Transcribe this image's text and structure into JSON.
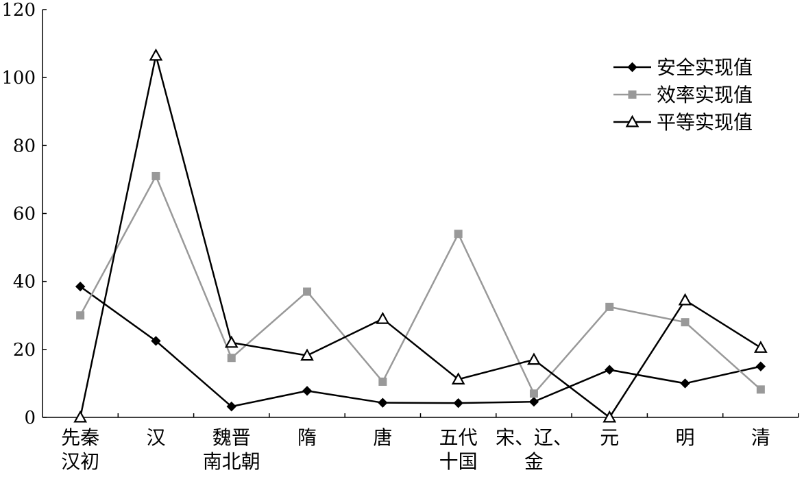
{
  "chart_data": {
    "type": "line",
    "categories": [
      [
        "先秦",
        "汉初"
      ],
      [
        "汉"
      ],
      [
        "魏晋",
        "南北朝"
      ],
      [
        "隋"
      ],
      [
        "唐"
      ],
      [
        "五代",
        "十国"
      ],
      [
        "宋、辽、",
        "金"
      ],
      [
        "元"
      ],
      [
        "明"
      ],
      [
        "清"
      ]
    ],
    "ylim": [
      0,
      120
    ],
    "yticks": [
      0,
      20,
      40,
      60,
      80,
      100,
      120
    ],
    "grid": false,
    "legend_position": "top-right",
    "series": [
      {
        "name": "安全实现值",
        "marker": "diamond",
        "color": "#000000",
        "values": [
          38.5,
          22.5,
          3.2,
          7.8,
          4.3,
          4.2,
          4.6,
          14,
          10,
          15
        ]
      },
      {
        "name": "效率实现值",
        "marker": "square",
        "color": "#999999",
        "values": [
          30,
          71,
          17.5,
          37,
          10.5,
          54,
          7,
          32.5,
          28,
          8.2
        ]
      },
      {
        "name": "平等实现值",
        "marker": "triangle",
        "color": "#000000",
        "values": [
          0,
          106.5,
          22,
          18.2,
          29,
          11.2,
          17,
          0,
          34.5,
          20.5
        ]
      }
    ]
  }
}
